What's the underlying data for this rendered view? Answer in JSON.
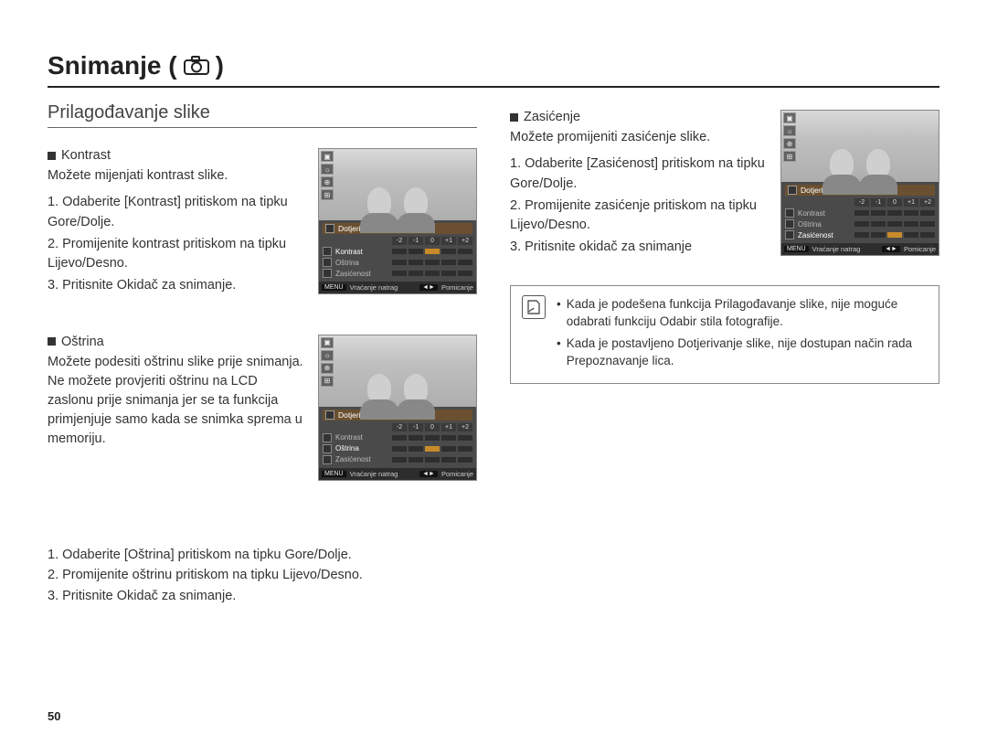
{
  "page_title": "Snimanje (",
  "page_title_suffix": ")",
  "page_number": "50",
  "left": {
    "section_title": "Prilagođavanje slike",
    "contrast": {
      "heading": "Kontrast",
      "desc": "Možete mijenjati kontrast slike.",
      "steps": [
        "1. Odaberite [Kontrast] pritiskom na tipku Gore/Dolje.",
        "2. Promijenite kontrast pritiskom na tipku Lijevo/Desno.",
        "3. Pritisnite Okidač za snimanje."
      ],
      "lcd": {
        "panel_title": "Dotjerivanje slike",
        "scale": [
          "-2",
          "-1",
          "0",
          "+1",
          "+2"
        ],
        "rows": [
          {
            "label": "Kontrast",
            "hl": true
          },
          {
            "label": "Oštrina",
            "hl": false
          },
          {
            "label": "Zasićenost",
            "hl": false
          }
        ],
        "footer_back_btn": "MENU",
        "footer_back": "Vraćanje natrag",
        "footer_move_btn": "◄►",
        "footer_move": "Pomicanje"
      }
    },
    "sharpness": {
      "heading": "Oštrina",
      "desc": "Možete podesiti oštrinu slike prije snimanja. Ne možete provjeriti oštrinu na LCD zaslonu prije snimanja jer se ta funkcija primjenjuje samo kada se snimka sprema u memoriju.",
      "lcd": {
        "panel_title": "Dotjerivanje slike",
        "scale": [
          "-2",
          "-1",
          "0",
          "+1",
          "+2"
        ],
        "rows": [
          {
            "label": "Kontrast",
            "hl": false
          },
          {
            "label": "Oštrina",
            "hl": true
          },
          {
            "label": "Zasićenost",
            "hl": false
          }
        ],
        "footer_back_btn": "MENU",
        "footer_back": "Vraćanje natrag",
        "footer_move_btn": "◄►",
        "footer_move": "Pomicanje"
      },
      "wide_steps": [
        "1. Odaberite [Oštrina] pritiskom na tipku Gore/Dolje.",
        "2. Promijenite oštrinu pritiskom na tipku Lijevo/Desno.",
        "3. Pritisnite Okidač za snimanje."
      ]
    }
  },
  "right": {
    "saturation": {
      "heading": "Zasićenje",
      "desc": "Možete promijeniti zasićenje slike.",
      "steps": [
        "1. Odaberite [Zasićenost] pritiskom na tipku Gore/Dolje.",
        "2. Promijenite zasićenje pritiskom na tipku Lijevo/Desno.",
        "3. Pritisnite okidač za snimanje"
      ],
      "lcd": {
        "panel_title": "Dotjerivanje slike",
        "scale": [
          "-2",
          "-1",
          "0",
          "+1",
          "+2"
        ],
        "rows": [
          {
            "label": "Kontrast",
            "hl": false
          },
          {
            "label": "Oštrina",
            "hl": false
          },
          {
            "label": "Zasićenost",
            "hl": true
          }
        ],
        "footer_back_btn": "MENU",
        "footer_back": "Vraćanje natrag",
        "footer_move_btn": "◄►",
        "footer_move": "Pomicanje"
      }
    },
    "notes": [
      "Kada je podešena funkcija Prilagođavanje slike, nije moguće odabrati funkciju Odabir stila fotografije.",
      "Kada je postavljeno Dotjerivanje slike, nije dostupan način rada Prepoznavanje lica."
    ]
  }
}
